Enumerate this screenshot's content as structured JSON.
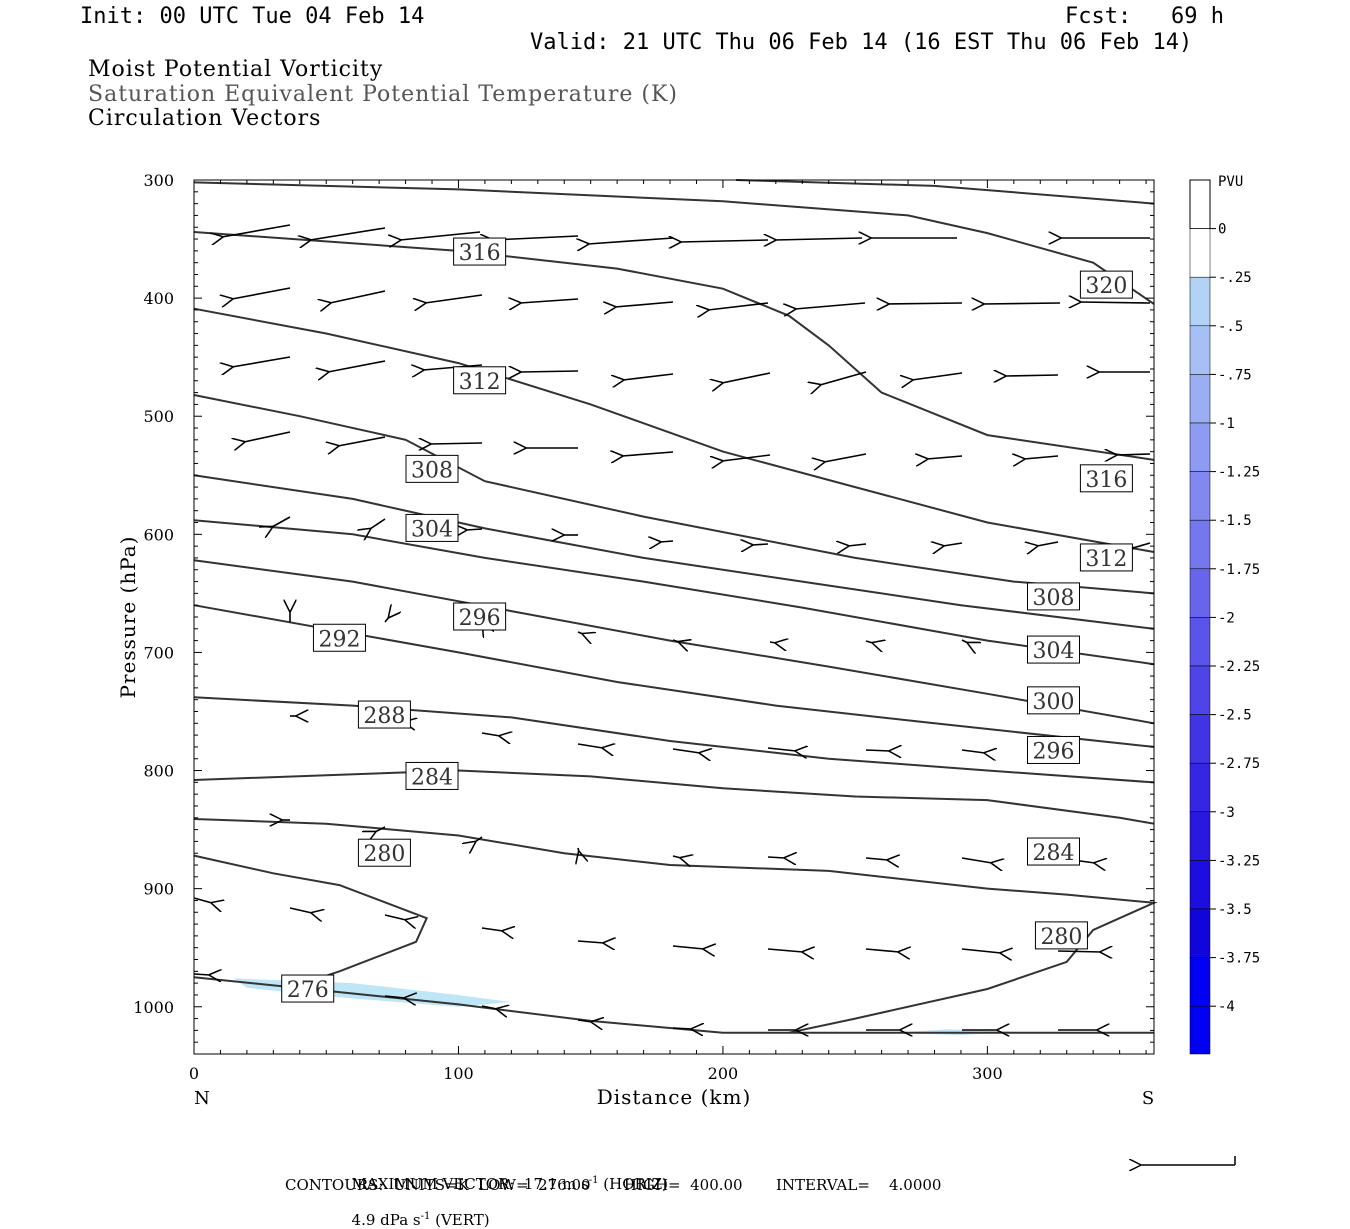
{
  "header": {
    "init": "Init: 00 UTC Tue 04 Feb 14",
    "fcst": "Fcst:   69 h",
    "valid": "Valid: 21 UTC Thu 06 Feb 14 (16 EST Thu 06 Feb 14)"
  },
  "titles": {
    "line1": "Moist Potential Vorticity",
    "line2": "Saturation Equivalent Potential Temperature (K)",
    "line3": "Circulation Vectors"
  },
  "footer": {
    "max_vector_prefix": "MAXIMUM VECTOR:  17.1 m s",
    "horiz_suffix": " (HORIZ)",
    "vert_prefix": "4.9 dPa s",
    "vert_suffix": " (VERT)",
    "exp": "-1",
    "contours": "CONTOURS:  UNITS=K  LOW=  276.00       HIGH=  400.00       INTERVAL=    4.0000"
  },
  "colors": {
    "contour": "#333333",
    "pv_light": "#bfe6f7",
    "frame": "#000000"
  },
  "chart_data": {
    "type": "cross-section",
    "xlabel": "Distance (km)",
    "ylabel": "Pressure (hPa)",
    "xlim": [
      0,
      363
    ],
    "ylim": [
      300,
      1040
    ],
    "x_ticks": [
      0,
      100,
      200,
      300
    ],
    "y_ticks": [
      300,
      400,
      500,
      600,
      700,
      800,
      900,
      1000
    ],
    "x_end_labels": {
      "left": "N",
      "right": "S"
    },
    "colorbar": {
      "title": "PVU",
      "levels": [
        "0",
        "-.25",
        "-.5",
        "-.75",
        "-1",
        "-1.25",
        "-1.5",
        "-1.75",
        "-2",
        "-2.25",
        "-2.5",
        "-2.75",
        "-3",
        "-3.25",
        "-3.5",
        "-3.75",
        "-4"
      ],
      "colors": [
        "#ffffff",
        "#bfe6f7",
        "#b3d3f6",
        "#a6c0f5",
        "#9aaef3",
        "#8d9cf2",
        "#8189f0",
        "#7477ee",
        "#6865ec",
        "#5b54ea",
        "#4f44e8",
        "#4234e5",
        "#3626e3",
        "#2918e0",
        "#1d0dde",
        "#1006db",
        "#0000f5"
      ]
    },
    "contours": [
      {
        "label": "276",
        "points": [
          [
            0,
            975
          ],
          [
            100,
            998
          ],
          [
            150,
            1012
          ],
          [
            200,
            1022
          ],
          [
            363,
            1022
          ]
        ],
        "labels": [
          [
            43,
            985
          ]
        ]
      },
      {
        "label": "280",
        "points": [
          [
            0,
            872
          ],
          [
            30,
            887
          ],
          [
            55,
            897
          ],
          [
            88,
            925
          ],
          [
            84,
            945
          ],
          [
            55,
            970
          ],
          [
            35,
            985
          ]
        ],
        "labels": [
          [
            72,
            870
          ]
        ]
      },
      {
        "label": "280",
        "points": [
          [
            0,
            841
          ],
          [
            50,
            845
          ],
          [
            100,
            855
          ],
          [
            140,
            870
          ],
          [
            180,
            880
          ],
          [
            240,
            885
          ],
          [
            300,
            900
          ],
          [
            330,
            905
          ],
          [
            363,
            912
          ],
          [
            340,
            935
          ],
          [
            330,
            962
          ],
          [
            300,
            985
          ],
          [
            250,
            1010
          ],
          [
            225,
            1022
          ]
        ],
        "labels": [
          [
            328,
            940
          ]
        ]
      },
      {
        "label": "284",
        "points": [
          [
            0,
            808
          ],
          [
            100,
            800
          ],
          [
            150,
            805
          ],
          [
            200,
            815
          ],
          [
            250,
            822
          ],
          [
            300,
            825
          ],
          [
            350,
            840
          ],
          [
            363,
            845
          ]
        ],
        "labels": [
          [
            90,
            805
          ],
          [
            325,
            869
          ]
        ]
      },
      {
        "label": "288",
        "points": [
          [
            0,
            738
          ],
          [
            60,
            745
          ],
          [
            120,
            755
          ],
          [
            180,
            775
          ],
          [
            240,
            790
          ],
          [
            300,
            800
          ],
          [
            363,
            810
          ]
        ],
        "labels": [
          [
            72,
            753
          ]
        ]
      },
      {
        "label": "292",
        "points": [
          [
            0,
            660
          ],
          [
            50,
            680
          ],
          [
            100,
            700
          ],
          [
            160,
            725
          ],
          [
            220,
            745
          ],
          [
            280,
            760
          ],
          [
            363,
            780
          ]
        ],
        "labels": [
          [
            55,
            688
          ]
        ]
      },
      {
        "label": "296",
        "points": [
          [
            0,
            622
          ],
          [
            60,
            640
          ],
          [
            120,
            665
          ],
          [
            180,
            690
          ],
          [
            240,
            712
          ],
          [
            300,
            735
          ],
          [
            363,
            760
          ]
        ],
        "labels": [
          [
            108,
            670
          ],
          [
            325,
            783
          ]
        ]
      },
      {
        "label": "300",
        "points": [
          [
            0,
            588
          ],
          [
            60,
            600
          ],
          [
            110,
            620
          ],
          [
            170,
            640
          ],
          [
            230,
            662
          ],
          [
            300,
            690
          ],
          [
            363,
            710
          ]
        ],
        "labels": [
          [
            325,
            741
          ]
        ]
      },
      {
        "label": "304",
        "points": [
          [
            0,
            550
          ],
          [
            60,
            570
          ],
          [
            110,
            595
          ],
          [
            170,
            620
          ],
          [
            230,
            640
          ],
          [
            290,
            660
          ],
          [
            363,
            680
          ]
        ],
        "labels": [
          [
            90,
            595
          ],
          [
            325,
            698
          ]
        ]
      },
      {
        "label": "308",
        "points": [
          [
            0,
            482
          ],
          [
            40,
            500
          ],
          [
            80,
            520
          ],
          [
            110,
            555
          ],
          [
            170,
            585
          ],
          [
            250,
            620
          ],
          [
            310,
            640
          ],
          [
            363,
            650
          ]
        ],
        "labels": [
          [
            90,
            545
          ],
          [
            325,
            653
          ]
        ]
      },
      {
        "label": "312",
        "points": [
          [
            0,
            409
          ],
          [
            50,
            430
          ],
          [
            100,
            455
          ],
          [
            150,
            490
          ],
          [
            200,
            530
          ],
          [
            250,
            560
          ],
          [
            300,
            590
          ],
          [
            363,
            615
          ]
        ],
        "labels": [
          [
            108,
            470
          ],
          [
            345,
            620
          ]
        ]
      },
      {
        "label": "316",
        "points": [
          [
            0,
            344
          ],
          [
            100,
            360
          ],
          [
            160,
            375
          ],
          [
            200,
            392
          ],
          [
            225,
            415
          ],
          [
            240,
            440
          ],
          [
            260,
            480
          ],
          [
            300,
            516
          ],
          [
            363,
            537
          ]
        ],
        "labels": [
          [
            108,
            361
          ],
          [
            345,
            553
          ]
        ]
      },
      {
        "label": "320",
        "points": [
          [
            0,
            302
          ],
          [
            100,
            308
          ],
          [
            200,
            318
          ],
          [
            270,
            330
          ],
          [
            300,
            345
          ],
          [
            340,
            370
          ],
          [
            363,
            405
          ]
        ],
        "labels": [
          [
            345,
            389
          ]
        ]
      },
      {
        "label": "",
        "points": [
          [
            205,
            300
          ],
          [
            280,
            305
          ],
          [
            363,
            320
          ]
        ],
        "labels": []
      }
    ],
    "pv_shading": [
      [
        [
          15,
          976
        ],
        [
          60,
          980
        ],
        [
          100,
          990
        ],
        [
          120,
          996
        ],
        [
          100,
          1000
        ],
        [
          60,
          993
        ],
        [
          20,
          984
        ]
      ],
      [
        [
          265,
          1022
        ],
        [
          285,
          1019
        ],
        [
          310,
          1021
        ],
        [
          290,
          1024
        ]
      ]
    ]
  }
}
